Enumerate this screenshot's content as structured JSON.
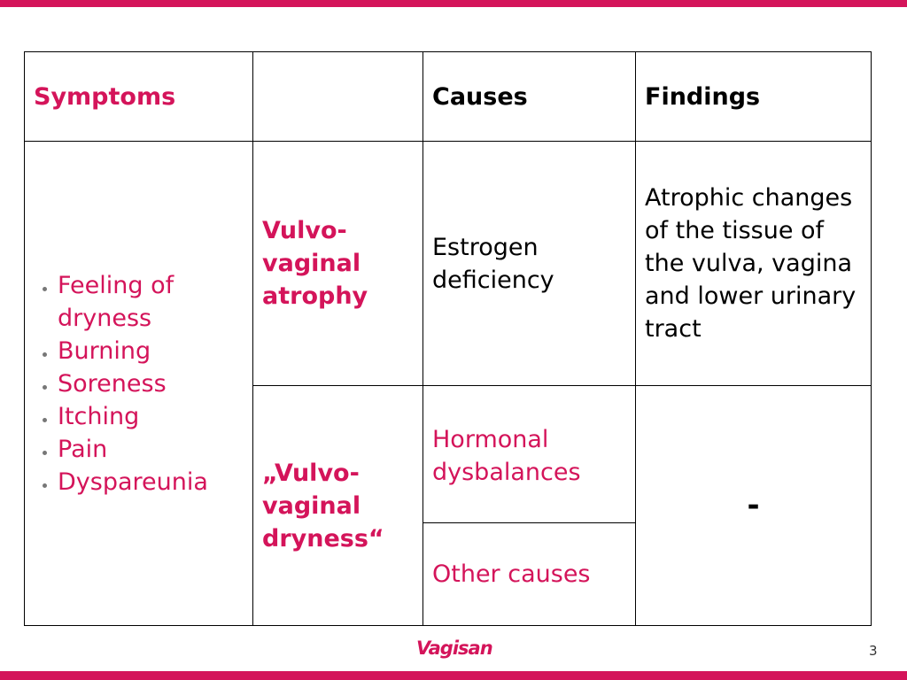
{
  "table": {
    "header": [
      "Symptoms",
      "Causes",
      "Findings"
    ],
    "symptoms": [
      "Feeling of dryness",
      "Burning",
      "Soreness",
      "Itching",
      "Pain",
      "Dyspareunia"
    ],
    "conditions": [
      {
        "name": "Vulvo-vaginal atrophy",
        "causes": [
          "Estrogen deficiency"
        ],
        "findings": "Atrophic changes of the tissue of the vulva, vagina and lower urinary tract"
      },
      {
        "name": "„Vulvo-vaginal dryness“",
        "causes": [
          "Hormonal dysbalances",
          "Other causes"
        ],
        "findings": "-"
      }
    ]
  },
  "footer": {
    "logo": "Vagisan",
    "page": "3"
  }
}
